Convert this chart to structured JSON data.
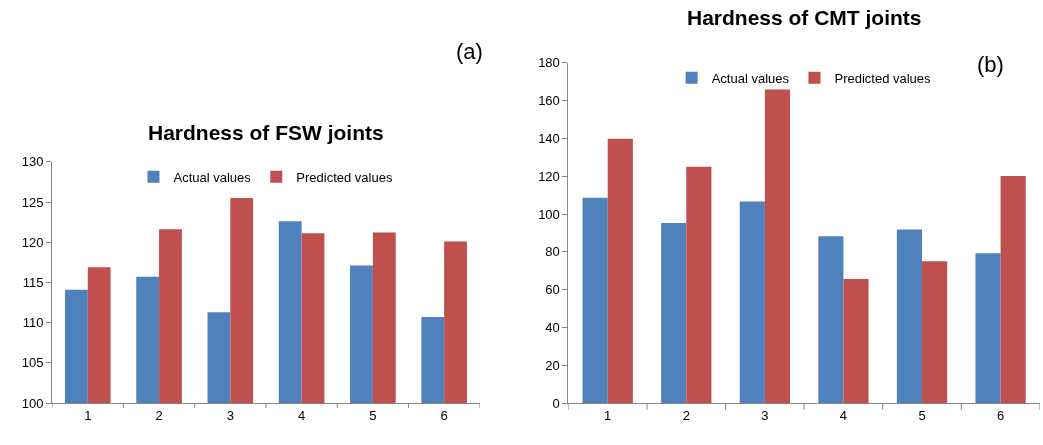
{
  "chart_data": [
    {
      "type": "bar",
      "title": "Hardness of FSW joints",
      "annotations": [
        "(a)"
      ],
      "categories": [
        "1",
        "2",
        "3",
        "4",
        "5",
        "6"
      ],
      "series": [
        {
          "name": "Actual values",
          "color": "#4f81bd",
          "values": [
            114.1,
            115.7,
            111.3,
            122.6,
            117.1,
            110.7
          ]
        },
        {
          "name": "Predicted values",
          "color": "#c0504d",
          "values": [
            116.9,
            121.6,
            125.5,
            121.1,
            121.2,
            120.1
          ]
        }
      ],
      "ylim": [
        100,
        130
      ],
      "yticks": [
        100,
        105,
        110,
        115,
        120,
        125,
        130
      ],
      "legend": "top"
    },
    {
      "type": "bar",
      "title": "Hardness of CMT joints",
      "annotations": [
        "(b)"
      ],
      "categories": [
        "1",
        "2",
        "3",
        "4",
        "5",
        "6"
      ],
      "series": [
        {
          "name": "Actual values",
          "color": "#4f81bd",
          "values": [
            108.7,
            95.3,
            106.6,
            88.3,
            91.8,
            79.2
          ]
        },
        {
          "name": "Predicted values",
          "color": "#c0504d",
          "values": [
            139.9,
            125,
            165.9,
            65.7,
            75,
            120.1
          ]
        }
      ],
      "ylim": [
        0,
        180
      ],
      "yticks": [
        0,
        20,
        40,
        60,
        80,
        100,
        120,
        140,
        160,
        180
      ],
      "legend": "top"
    }
  ]
}
